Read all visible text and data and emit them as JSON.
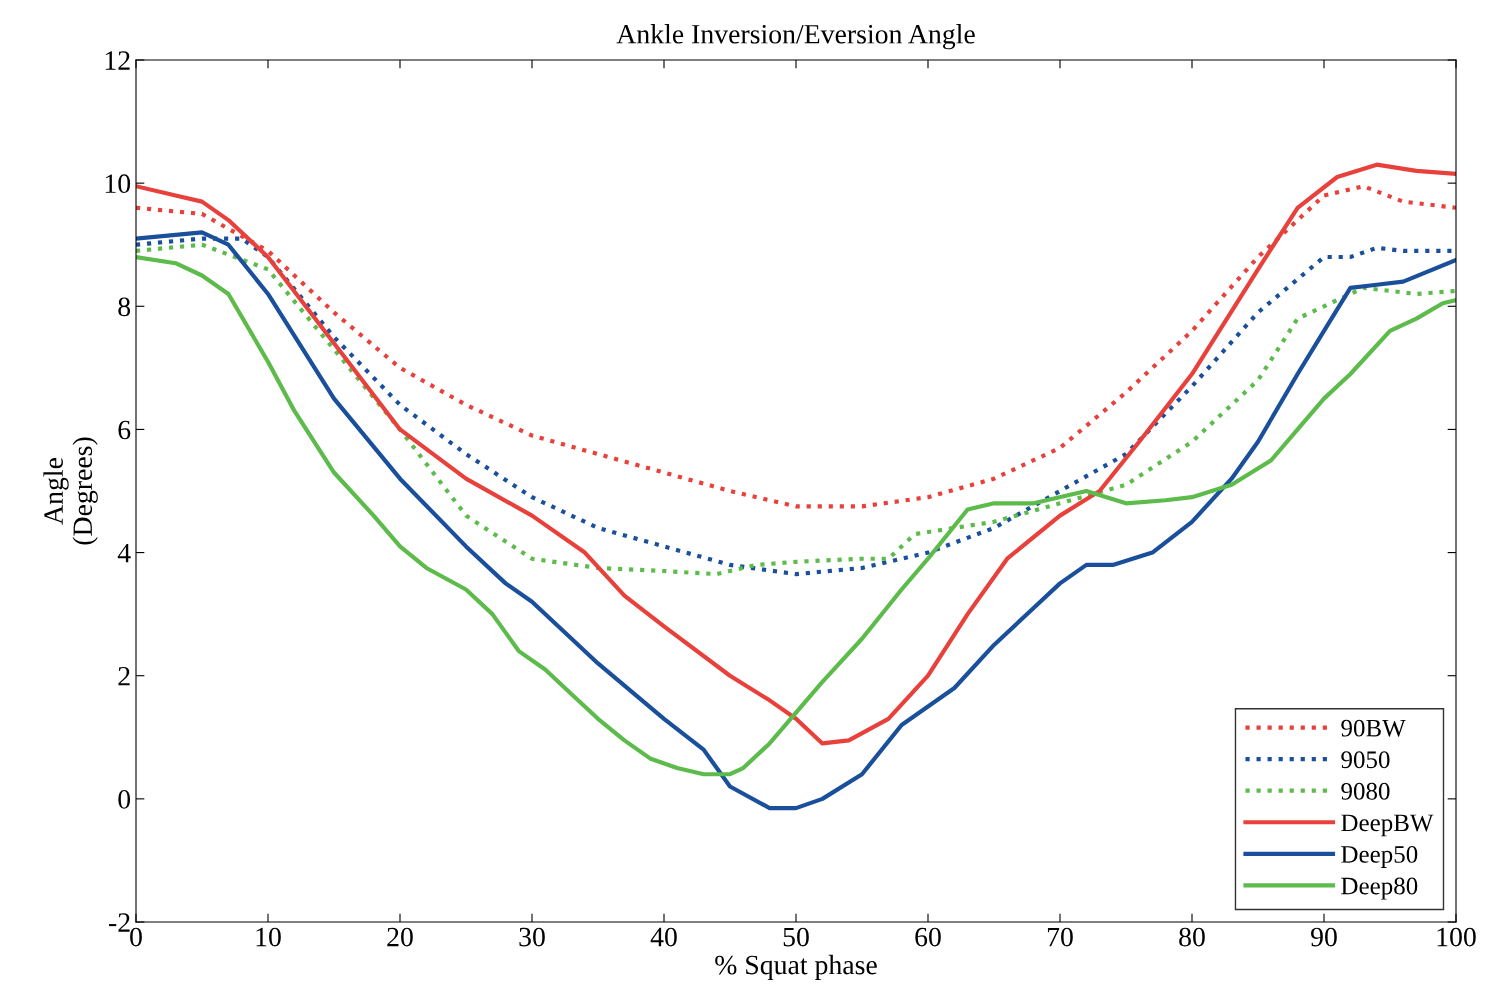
{
  "chart_data": {
    "type": "line",
    "title": "Ankle Inversion/Eversion Angle",
    "xlabel": "% Squat phase",
    "ylabel": "Angle\n(Degrees)",
    "xlim": [
      0,
      100
    ],
    "xticks": [
      0,
      10,
      20,
      30,
      40,
      50,
      60,
      70,
      80,
      90,
      100
    ],
    "ylim": [
      -2,
      12
    ],
    "yticks": [
      -2,
      0,
      2,
      4,
      6,
      8,
      10,
      12
    ],
    "grid": false,
    "legend": "bottom right",
    "series": [
      {
        "name": "90BW",
        "color": "#e8413c",
        "line_style": "dotted",
        "x": [
          0,
          5,
          10,
          15,
          20,
          25,
          30,
          35,
          40,
          45,
          50,
          55,
          60,
          65,
          70,
          75,
          80,
          85,
          90,
          93,
          96,
          100
        ],
        "values": [
          9.6,
          9.5,
          8.9,
          7.9,
          7.0,
          6.4,
          5.9,
          5.6,
          5.3,
          5.0,
          4.75,
          4.75,
          4.9,
          5.2,
          5.7,
          6.6,
          7.6,
          8.8,
          9.8,
          9.95,
          9.7,
          9.6
        ]
      },
      {
        "name": "9050",
        "color": "#1a4f9c",
        "line_style": "dotted",
        "x": [
          0,
          5,
          8,
          10,
          15,
          20,
          25,
          30,
          35,
          40,
          45,
          50,
          55,
          60,
          65,
          70,
          75,
          80,
          85,
          90,
          92,
          94,
          96,
          100
        ],
        "values": [
          9.0,
          9.1,
          9.1,
          8.8,
          7.5,
          6.4,
          5.6,
          4.9,
          4.4,
          4.1,
          3.8,
          3.65,
          3.75,
          4.0,
          4.4,
          5.0,
          5.6,
          6.7,
          7.9,
          8.8,
          8.8,
          8.95,
          8.9,
          8.9
        ]
      },
      {
        "name": "9080",
        "color": "#5cbb4a",
        "line_style": "dotted",
        "x": [
          0,
          5,
          10,
          15,
          20,
          25,
          30,
          35,
          40,
          44,
          47,
          50,
          55,
          57,
          59,
          62,
          65,
          70,
          75,
          80,
          85,
          88,
          90,
          93,
          97,
          100
        ],
        "values": [
          8.9,
          9.0,
          8.6,
          7.3,
          6.0,
          4.6,
          3.9,
          3.75,
          3.7,
          3.65,
          3.8,
          3.85,
          3.9,
          3.9,
          4.3,
          4.4,
          4.5,
          4.8,
          5.1,
          5.8,
          6.8,
          7.8,
          8.0,
          8.3,
          8.2,
          8.25
        ]
      },
      {
        "name": "DeepBW",
        "color": "#e8413c",
        "line_style": "solid",
        "x": [
          0,
          3,
          5,
          7,
          10,
          15,
          20,
          25,
          30,
          34,
          37,
          40,
          45,
          48,
          50,
          52,
          54,
          57,
          60,
          63,
          66,
          70,
          73,
          76,
          80,
          85,
          88,
          91,
          94,
          97,
          100
        ],
        "values": [
          9.95,
          9.8,
          9.7,
          9.4,
          8.8,
          7.4,
          6.0,
          5.2,
          4.6,
          4.0,
          3.3,
          2.8,
          2.0,
          1.6,
          1.3,
          0.9,
          0.95,
          1.3,
          2.0,
          3.0,
          3.9,
          4.6,
          5.0,
          5.8,
          6.9,
          8.6,
          9.6,
          10.1,
          10.3,
          10.2,
          10.15
        ]
      },
      {
        "name": "Deep50",
        "color": "#1a4f9c",
        "line_style": "solid",
        "x": [
          0,
          5,
          7,
          10,
          15,
          20,
          25,
          28,
          30,
          33,
          35,
          40,
          43,
          45,
          48,
          50,
          52,
          55,
          58,
          60,
          62,
          65,
          68,
          70,
          72,
          74,
          77,
          80,
          83,
          85,
          88,
          90,
          92,
          94,
          96,
          100
        ],
        "values": [
          9.1,
          9.2,
          9.0,
          8.2,
          6.5,
          5.2,
          4.1,
          3.5,
          3.2,
          2.6,
          2.2,
          1.3,
          0.8,
          0.2,
          -0.15,
          -0.15,
          0.0,
          0.4,
          1.2,
          1.5,
          1.8,
          2.5,
          3.1,
          3.5,
          3.8,
          3.8,
          4.0,
          4.5,
          5.2,
          5.8,
          6.9,
          7.6,
          8.3,
          8.35,
          8.4,
          8.75
        ]
      },
      {
        "name": "Deep80",
        "color": "#5cbb4a",
        "line_style": "solid",
        "x": [
          0,
          3,
          5,
          7,
          10,
          12,
          15,
          18,
          20,
          22,
          25,
          27,
          29,
          31,
          33,
          35,
          37,
          39,
          41,
          43,
          45,
          46,
          48,
          50,
          52,
          55,
          58,
          60,
          63,
          65,
          68,
          72,
          75,
          78,
          80,
          83,
          86,
          88,
          90,
          92,
          95,
          97,
          99,
          100
        ],
        "values": [
          8.8,
          8.7,
          8.5,
          8.2,
          7.1,
          6.3,
          5.3,
          4.6,
          4.1,
          3.75,
          3.4,
          3.0,
          2.4,
          2.1,
          1.7,
          1.3,
          0.95,
          0.65,
          0.5,
          0.4,
          0.4,
          0.5,
          0.9,
          1.4,
          1.9,
          2.6,
          3.4,
          3.9,
          4.7,
          4.8,
          4.8,
          5.0,
          4.8,
          4.85,
          4.9,
          5.1,
          5.5,
          6.0,
          6.5,
          6.9,
          7.6,
          7.8,
          8.05,
          8.1
        ]
      }
    ]
  }
}
